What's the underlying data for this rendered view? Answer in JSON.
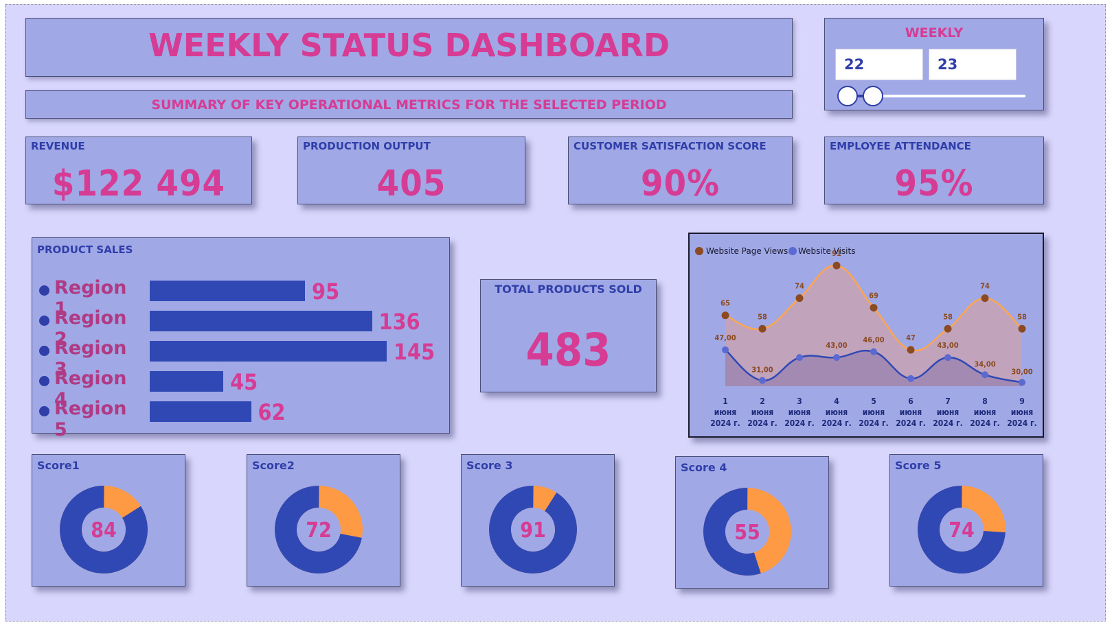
{
  "header": {
    "title": "WEEKLY STATUS DASHBOARD",
    "subtitle": "SUMMARY OF KEY OPERATIONAL METRICS FOR THE SELECTED PERIOD"
  },
  "week_slicer": {
    "label": "WEEKLY",
    "from": "22",
    "to": "23"
  },
  "kpis": [
    {
      "label": "REVENUE",
      "value": "$122 494"
    },
    {
      "label": "PRODUCTION OUTPUT",
      "value": "405"
    },
    {
      "label": "CUSTOMER SATISFACTION SCORE",
      "value": "90%"
    },
    {
      "label": "EMPLOYEE ATTENDANCE",
      "value": "95%"
    }
  ],
  "product_sales": {
    "title": "PRODUCT SALES",
    "regions": [
      {
        "name": "Region 1",
        "value": "95"
      },
      {
        "name": "Region 2",
        "value": "136"
      },
      {
        "name": "Region 3",
        "value": "145"
      },
      {
        "name": "Region 4",
        "value": "45"
      },
      {
        "name": "Region 5",
        "value": "62"
      }
    ]
  },
  "total_products": {
    "label": "TOTAL PRODUCTS SOLD",
    "value": "483"
  },
  "scores": [
    {
      "label": "Score1",
      "value": "84"
    },
    {
      "label": "Score2",
      "value": "72"
    },
    {
      "label": "Score 3",
      "value": "91"
    },
    {
      "label": "Score 4",
      "value": "55"
    },
    {
      "label": "Score 5",
      "value": "74"
    }
  ],
  "colors": {
    "background": "#d8d6fc",
    "card": "#a0a8e6",
    "pink": "#d63c93",
    "navy": "#2f3ea8",
    "orange": "#ff9a44",
    "page_views": "#8b4a22",
    "visits": "#5566cc"
  },
  "chart_data": [
    {
      "type": "bar",
      "title": "PRODUCT SALES",
      "categories": [
        "Region 1",
        "Region 2",
        "Region 3",
        "Region 4",
        "Region 5"
      ],
      "values": [
        95,
        136,
        145,
        45,
        62
      ]
    },
    {
      "type": "line",
      "legend": "top-left",
      "categories": [
        "1 июня 2024 г.",
        "2 июня 2024 г.",
        "3 июня 2024 г.",
        "4 июня 2024 г.",
        "5 июня 2024 г.",
        "6 июня 2024 г.",
        "7 июня 2024 г.",
        "8 июня 2024 г.",
        "9 июня 2024 г."
      ],
      "category_lines": [
        [
          "1",
          "июня",
          "2024 г."
        ],
        [
          "2",
          "июня",
          "2024 г."
        ],
        [
          "3",
          "июня",
          "2024 г."
        ],
        [
          "4",
          "июня",
          "2024 г."
        ],
        [
          "5",
          "июня",
          "2024 г."
        ],
        [
          "6",
          "июня",
          "2024 г."
        ],
        [
          "7",
          "июня",
          "2024 г."
        ],
        [
          "8",
          "июня",
          "2024 г."
        ],
        [
          "9",
          "июня",
          "2024 г."
        ]
      ],
      "series": [
        {
          "name": "Website Page Views",
          "values": [
            65,
            58,
            74,
            91,
            69,
            47,
            58,
            74,
            58
          ],
          "labels": [
            "65",
            "58",
            "74",
            "91",
            "69",
            "47",
            "58",
            "74",
            "58"
          ]
        },
        {
          "name": "Website Visits",
          "values": [
            47,
            31,
            43,
            43,
            46,
            32,
            43,
            34,
            30
          ],
          "labels": [
            "47,00",
            "31,00",
            "",
            "43,00",
            "46,00",
            "",
            "43,00",
            "34,00",
            "30,00"
          ]
        }
      ]
    },
    {
      "type": "pie",
      "donut": true,
      "categories": [
        "Score1",
        "Score2",
        "Score 3",
        "Score 4",
        "Score 5"
      ],
      "values": [
        84,
        72,
        91,
        55,
        74
      ]
    }
  ]
}
